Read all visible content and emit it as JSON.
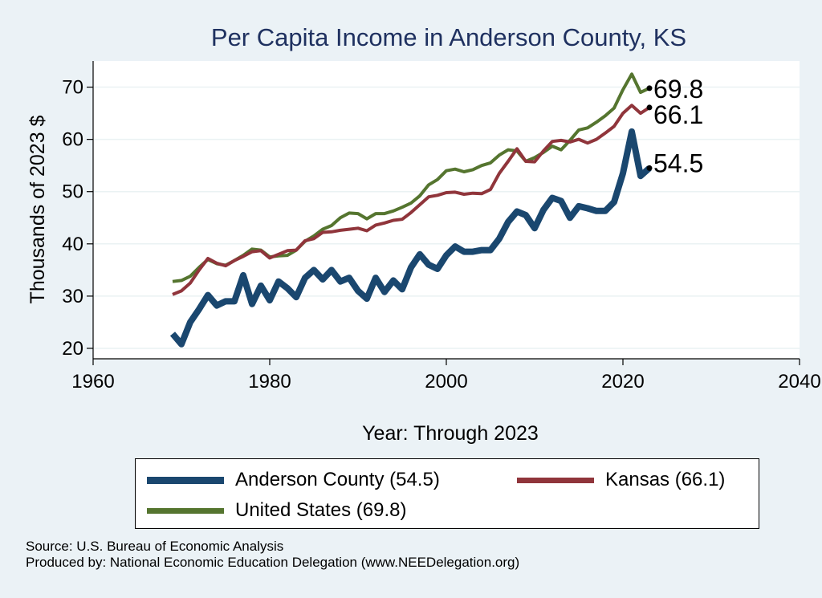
{
  "chart_data": {
    "type": "line",
    "title": "Per Capita Income in Anderson County, KS",
    "xlabel": "Year: Through 2023",
    "ylabel": "Thousands of 2023 $",
    "xlim": [
      1960,
      2040
    ],
    "ylim": [
      18,
      75
    ],
    "xticks": [
      1960,
      1980,
      2000,
      2020,
      2040
    ],
    "yticks": [
      20,
      30,
      40,
      50,
      60,
      70
    ],
    "grid": true,
    "legend_position": "bottom",
    "x": [
      1969,
      1970,
      1971,
      1972,
      1973,
      1974,
      1975,
      1976,
      1977,
      1978,
      1979,
      1980,
      1981,
      1982,
      1983,
      1984,
      1985,
      1986,
      1987,
      1988,
      1989,
      1990,
      1991,
      1992,
      1993,
      1994,
      1995,
      1996,
      1997,
      1998,
      1999,
      2000,
      2001,
      2002,
      2003,
      2004,
      2005,
      2006,
      2007,
      2008,
      2009,
      2010,
      2011,
      2012,
      2013,
      2014,
      2015,
      2016,
      2017,
      2018,
      2019,
      2020,
      2021,
      2022,
      2023
    ],
    "series": [
      {
        "name": "Anderson County (54.5)",
        "end_label": "54.5",
        "color": "#1a476f",
        "width": 8,
        "values": [
          22.8,
          20.8,
          25.0,
          27.5,
          30.2,
          28.2,
          29.0,
          29.0,
          34.0,
          28.5,
          32.0,
          29.2,
          32.8,
          31.5,
          29.8,
          33.5,
          35.0,
          33.2,
          35.0,
          32.8,
          33.5,
          31.0,
          29.5,
          33.5,
          30.8,
          33.0,
          31.3,
          35.5,
          38.0,
          36.0,
          35.2,
          37.8,
          39.5,
          38.5,
          38.5,
          38.8,
          38.8,
          41.0,
          44.2,
          46.2,
          45.5,
          43.0,
          46.5,
          48.8,
          48.2,
          45.0,
          47.2,
          46.8,
          46.3,
          46.3,
          48.0,
          53.5,
          61.5,
          53.0,
          54.5
        ]
      },
      {
        "name": "Kansas (66.1)",
        "end_label": "66.1",
        "color": "#90353b",
        "width": 4,
        "values": [
          30.3,
          31.0,
          32.5,
          35.0,
          37.2,
          36.3,
          35.8,
          36.8,
          37.6,
          38.5,
          38.7,
          37.3,
          38.0,
          38.7,
          38.8,
          40.6,
          41.0,
          42.2,
          42.3,
          42.6,
          42.8,
          43.0,
          42.5,
          43.6,
          44.0,
          44.5,
          44.7,
          46.0,
          47.5,
          49.0,
          49.3,
          49.8,
          49.9,
          49.5,
          49.7,
          49.6,
          50.4,
          53.5,
          55.8,
          58.2,
          55.8,
          55.7,
          57.8,
          59.6,
          59.8,
          59.5,
          60.0,
          59.3,
          60.0,
          61.2,
          62.5,
          65.0,
          66.5,
          65.0,
          66.1
        ]
      },
      {
        "name": "United States (69.8)",
        "end_label": "69.8",
        "color": "#55752f",
        "width": 4,
        "values": [
          32.8,
          33.0,
          33.8,
          35.5,
          37.0,
          36.2,
          35.9,
          36.8,
          37.8,
          39.0,
          38.8,
          37.5,
          37.7,
          37.8,
          38.8,
          40.5,
          41.5,
          42.8,
          43.5,
          45.0,
          45.9,
          45.8,
          44.8,
          45.8,
          45.8,
          46.3,
          47.0,
          47.8,
          49.2,
          51.3,
          52.3,
          54.0,
          54.3,
          53.8,
          54.2,
          55.0,
          55.5,
          57.0,
          58.0,
          57.8,
          55.8,
          56.5,
          57.5,
          58.7,
          58.0,
          59.8,
          61.8,
          62.2,
          63.3,
          64.5,
          66.0,
          69.5,
          72.5,
          69.0,
          69.8
        ]
      }
    ]
  },
  "source": {
    "line1": "Source: U.S. Bureau of Economic Analysis",
    "line2": "Produced by: National Economic Education Delegation (www.NEEDelegation.org)"
  }
}
